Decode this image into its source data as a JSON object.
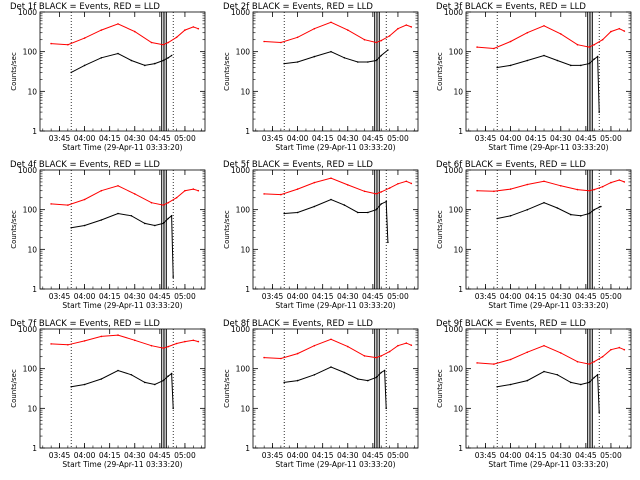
{
  "figure": {
    "xlabel": "Start Time (29-Apr-11 03:33:20)",
    "ylabel": "Counts/sec",
    "red_color": "#ff0000",
    "black_color": "#000000"
  },
  "chart_data": [
    {
      "type": "line",
      "title": "Det 1f BLACK = Events, RED = LLD",
      "x_ticks": [
        "03:45",
        "04:00",
        "04:15",
        "04:30",
        "04:45",
        "05:00"
      ],
      "y_ticks": [
        "1",
        "10",
        "100",
        "1000"
      ],
      "ylim": [
        1,
        1000
      ],
      "yscale": "log",
      "grid": false,
      "series": [
        {
          "color": "#000000",
          "x": [
            "03:52",
            "04:00",
            "04:10",
            "04:20",
            "04:28",
            "04:36",
            "04:42",
            "04:47",
            "04:50",
            "04:52"
          ],
          "values": [
            30,
            45,
            70,
            90,
            60,
            45,
            50,
            60,
            70,
            80
          ]
        },
        {
          "color": "#ff0000",
          "x": [
            "03:40",
            "03:50",
            "04:00",
            "04:10",
            "04:20",
            "04:30",
            "04:40",
            "04:47",
            "04:50",
            "04:55",
            "05:00",
            "05:05",
            "05:08"
          ],
          "values": [
            160,
            150,
            220,
            350,
            500,
            320,
            170,
            150,
            170,
            230,
            350,
            420,
            380
          ]
        }
      ]
    },
    {
      "type": "line",
      "title": "Det 2f BLACK = Events, RED = LLD",
      "x_ticks": [
        "03:45",
        "04:00",
        "04:15",
        "04:30",
        "04:45",
        "05:00"
      ],
      "y_ticks": [
        "1",
        "10",
        "100",
        "1000"
      ],
      "ylim": [
        1,
        1000
      ],
      "yscale": "log",
      "grid": false,
      "series": [
        {
          "color": "#000000",
          "x": [
            "03:52",
            "04:00",
            "04:10",
            "04:20",
            "04:28",
            "04:36",
            "04:42",
            "04:47",
            "04:50",
            "04:54"
          ],
          "values": [
            50,
            55,
            75,
            100,
            70,
            55,
            55,
            60,
            80,
            110
          ]
        },
        {
          "color": "#ff0000",
          "x": [
            "03:40",
            "03:50",
            "04:00",
            "04:10",
            "04:20",
            "04:30",
            "04:40",
            "04:47",
            "04:50",
            "04:55",
            "05:00",
            "05:05",
            "05:08"
          ],
          "values": [
            180,
            170,
            230,
            380,
            550,
            350,
            200,
            170,
            190,
            250,
            380,
            470,
            420
          ]
        }
      ]
    },
    {
      "type": "line",
      "title": "Det 3f BLACK = Events, RED = LLD",
      "x_ticks": [
        "03:45",
        "04:00",
        "04:15",
        "04:30",
        "04:45",
        "05:00"
      ],
      "y_ticks": [
        "1",
        "10",
        "100",
        "1000"
      ],
      "ylim": [
        1,
        1000
      ],
      "yscale": "log",
      "grid": false,
      "series": [
        {
          "color": "#000000",
          "x": [
            "03:52",
            "04:00",
            "04:10",
            "04:20",
            "04:28",
            "04:36",
            "04:42",
            "04:47",
            "04:50",
            "04:52",
            "04:53"
          ],
          "values": [
            40,
            45,
            60,
            80,
            60,
            45,
            45,
            50,
            65,
            75,
            3
          ]
        },
        {
          "color": "#ff0000",
          "x": [
            "03:40",
            "03:50",
            "04:00",
            "04:10",
            "04:20",
            "04:30",
            "04:40",
            "04:47",
            "04:50",
            "04:55",
            "05:00",
            "05:05",
            "05:08"
          ],
          "values": [
            130,
            120,
            180,
            300,
            450,
            280,
            150,
            130,
            150,
            200,
            320,
            380,
            330
          ]
        }
      ]
    },
    {
      "type": "line",
      "title": "Det 4f BLACK = Events, RED = LLD",
      "x_ticks": [
        "03:45",
        "04:00",
        "04:15",
        "04:30",
        "04:45",
        "05:00"
      ],
      "y_ticks": [
        "1",
        "10",
        "100",
        "1000"
      ],
      "ylim": [
        1,
        1000
      ],
      "yscale": "log",
      "grid": false,
      "series": [
        {
          "color": "#000000",
          "x": [
            "03:52",
            "04:00",
            "04:10",
            "04:20",
            "04:28",
            "04:36",
            "04:42",
            "04:47",
            "04:50",
            "04:52",
            "04:53"
          ],
          "values": [
            35,
            40,
            55,
            80,
            70,
            45,
            40,
            45,
            60,
            70,
            2
          ]
        },
        {
          "color": "#ff0000",
          "x": [
            "03:40",
            "03:50",
            "04:00",
            "04:10",
            "04:20",
            "04:30",
            "04:40",
            "04:47",
            "04:50",
            "04:55",
            "05:00",
            "05:05",
            "05:08"
          ],
          "values": [
            140,
            130,
            180,
            300,
            400,
            250,
            150,
            130,
            150,
            200,
            300,
            330,
            300
          ]
        }
      ]
    },
    {
      "type": "line",
      "title": "Det 5f BLACK = Events, RED = LLD",
      "x_ticks": [
        "03:45",
        "04:00",
        "04:15",
        "04:30",
        "04:45",
        "05:00"
      ],
      "y_ticks": [
        "1",
        "10",
        "100",
        "1000"
      ],
      "ylim": [
        1,
        1000
      ],
      "yscale": "log",
      "grid": false,
      "series": [
        {
          "color": "#000000",
          "x": [
            "03:52",
            "04:00",
            "04:10",
            "04:20",
            "04:28",
            "04:36",
            "04:42",
            "04:47",
            "04:50",
            "04:53",
            "04:54"
          ],
          "values": [
            80,
            85,
            120,
            180,
            130,
            85,
            85,
            100,
            140,
            160,
            15
          ]
        },
        {
          "color": "#ff0000",
          "x": [
            "03:40",
            "03:50",
            "04:00",
            "04:10",
            "04:20",
            "04:30",
            "04:40",
            "04:47",
            "04:50",
            "04:55",
            "05:00",
            "05:05",
            "05:08"
          ],
          "values": [
            250,
            240,
            330,
            480,
            620,
            420,
            290,
            250,
            280,
            350,
            450,
            520,
            460
          ]
        }
      ]
    },
    {
      "type": "line",
      "title": "Det 6f BLACK = Events, RED = LLD",
      "x_ticks": [
        "03:45",
        "04:00",
        "04:15",
        "04:30",
        "04:45",
        "05:00"
      ],
      "y_ticks": [
        "1",
        "10",
        "100",
        "1000"
      ],
      "ylim": [
        1,
        1000
      ],
      "yscale": "log",
      "grid": false,
      "series": [
        {
          "color": "#000000",
          "x": [
            "03:52",
            "04:00",
            "04:10",
            "04:20",
            "04:28",
            "04:36",
            "04:42",
            "04:47",
            "04:50",
            "04:54"
          ],
          "values": [
            60,
            70,
            100,
            150,
            110,
            75,
            70,
            80,
            100,
            120
          ]
        },
        {
          "color": "#ff0000",
          "x": [
            "03:40",
            "03:50",
            "04:00",
            "04:10",
            "04:20",
            "04:30",
            "04:40",
            "04:47",
            "04:50",
            "04:55",
            "05:00",
            "05:05",
            "05:08"
          ],
          "values": [
            300,
            290,
            330,
            430,
            520,
            400,
            320,
            300,
            320,
            380,
            480,
            560,
            500
          ]
        }
      ]
    },
    {
      "type": "line",
      "title": "Det 7f BLACK = Events, RED = LLD",
      "x_ticks": [
        "03:45",
        "04:00",
        "04:15",
        "04:30",
        "04:45",
        "05:00"
      ],
      "y_ticks": [
        "1",
        "10",
        "100",
        "1000"
      ],
      "ylim": [
        1,
        1000
      ],
      "yscale": "log",
      "grid": false,
      "series": [
        {
          "color": "#000000",
          "x": [
            "03:52",
            "04:00",
            "04:10",
            "04:20",
            "04:28",
            "04:36",
            "04:42",
            "04:47",
            "04:50",
            "04:52",
            "04:53"
          ],
          "values": [
            35,
            40,
            55,
            90,
            70,
            45,
            40,
            50,
            65,
            75,
            10
          ]
        },
        {
          "color": "#ff0000",
          "x": [
            "03:40",
            "03:50",
            "04:00",
            "04:10",
            "04:20",
            "04:30",
            "04:40",
            "04:47",
            "04:50",
            "04:55",
            "05:00",
            "05:05",
            "05:08"
          ],
          "values": [
            420,
            400,
            500,
            650,
            700,
            520,
            380,
            330,
            360,
            430,
            480,
            520,
            480
          ]
        }
      ]
    },
    {
      "type": "line",
      "title": "Det 8f BLACK = Events, RED = LLD",
      "x_ticks": [
        "03:45",
        "04:00",
        "04:15",
        "04:30",
        "04:45",
        "05:00"
      ],
      "y_ticks": [
        "1",
        "10",
        "100",
        "1000"
      ],
      "ylim": [
        1,
        1000
      ],
      "yscale": "log",
      "grid": false,
      "series": [
        {
          "color": "#000000",
          "x": [
            "03:52",
            "04:00",
            "04:10",
            "04:20",
            "04:28",
            "04:36",
            "04:42",
            "04:47",
            "04:50",
            "04:52",
            "04:53"
          ],
          "values": [
            45,
            50,
            70,
            110,
            80,
            55,
            50,
            60,
            80,
            90,
            10
          ]
        },
        {
          "color": "#ff0000",
          "x": [
            "03:40",
            "03:50",
            "04:00",
            "04:10",
            "04:20",
            "04:30",
            "04:40",
            "04:47",
            "04:50",
            "04:55",
            "05:00",
            "05:05",
            "05:08"
          ],
          "values": [
            190,
            180,
            240,
            380,
            550,
            360,
            210,
            190,
            210,
            270,
            380,
            440,
            390
          ]
        }
      ]
    },
    {
      "type": "line",
      "title": "Det 9f BLACK = Events, RED = LLD",
      "x_ticks": [
        "03:45",
        "04:00",
        "04:15",
        "04:30",
        "04:45",
        "05:00"
      ],
      "y_ticks": [
        "1",
        "10",
        "100",
        "1000"
      ],
      "ylim": [
        1,
        1000
      ],
      "yscale": "log",
      "grid": false,
      "series": [
        {
          "color": "#000000",
          "x": [
            "03:52",
            "04:00",
            "04:10",
            "04:20",
            "04:28",
            "04:36",
            "04:42",
            "04:47",
            "04:50",
            "04:52",
            "04:53"
          ],
          "values": [
            35,
            40,
            50,
            85,
            70,
            45,
            40,
            45,
            60,
            70,
            8
          ]
        },
        {
          "color": "#ff0000",
          "x": [
            "03:40",
            "03:50",
            "04:00",
            "04:10",
            "04:20",
            "04:30",
            "04:40",
            "04:47",
            "04:50",
            "04:55",
            "05:00",
            "05:05",
            "05:08"
          ],
          "values": [
            140,
            130,
            170,
            260,
            380,
            250,
            150,
            130,
            150,
            200,
            300,
            340,
            300
          ]
        }
      ]
    }
  ]
}
